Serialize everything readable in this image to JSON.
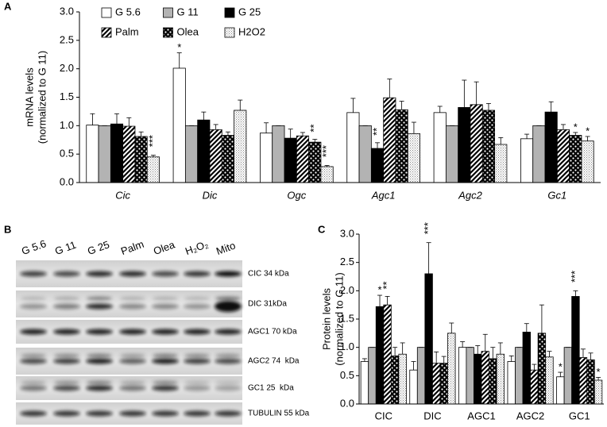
{
  "panel_labels": [
    "A",
    "B",
    "C"
  ],
  "chart_data": [
    {
      "type": "bar",
      "ylabel": [
        "mRNA levels",
        "(normalized to G 11)"
      ],
      "categories": [
        "Cic",
        "Dic",
        "Ogc",
        "Agc1",
        "Agc2",
        "Gc1"
      ],
      "ylim": [
        0,
        3.0
      ],
      "yticks": [
        {
          "value": 0,
          "label": "0.0"
        },
        0.5,
        {
          "value": 1,
          "label": "1.0"
        },
        1.5,
        {
          "value": 2,
          "label": "2.0"
        },
        2.5,
        {
          "value": 3,
          "label": "3.0"
        }
      ],
      "legend": "top-left",
      "series": [
        {
          "name": "G 5.6",
          "color": "#ffffff",
          "pattern": null,
          "values": [
            1.01,
            2.01,
            0.87,
            1.23,
            1.23,
            0.77
          ],
          "errors": [
            0.2,
            0.27,
            0.18,
            0.25,
            0.11,
            0.08
          ],
          "significance": [
            null,
            "*",
            null,
            null,
            null,
            null
          ]
        },
        {
          "name": "G 11",
          "color": "#b3b3b3",
          "pattern": null,
          "values": [
            1.0,
            1.0,
            1.0,
            1.0,
            1.0,
            1.0
          ],
          "errors": [
            0,
            0,
            0,
            0,
            0,
            0
          ],
          "significance": [
            null,
            null,
            null,
            null,
            null,
            null
          ]
        },
        {
          "name": "G 25",
          "color": "#000000",
          "pattern": null,
          "values": [
            1.03,
            1.1,
            0.78,
            0.6,
            1.32,
            1.24
          ],
          "errors": [
            0.18,
            0.14,
            0.16,
            0.1,
            0.48,
            0.18
          ],
          "significance": [
            null,
            null,
            null,
            "**",
            null,
            null
          ]
        },
        {
          "name": "Palm",
          "color": "#000000",
          "pattern": "diagonal",
          "values": [
            0.99,
            0.93,
            0.82,
            1.49,
            1.37,
            0.93
          ],
          "errors": [
            0.15,
            0.09,
            0.06,
            0.33,
            0.4,
            0.09
          ],
          "significance": [
            null,
            null,
            null,
            null,
            null,
            null
          ]
        },
        {
          "name": "Olea",
          "color": "#000000",
          "pattern": "dots",
          "values": [
            0.81,
            0.83,
            0.71,
            1.28,
            1.27,
            0.83
          ],
          "errors": [
            0.08,
            0.06,
            0.05,
            0.15,
            0.12,
            0.05
          ],
          "significance": [
            null,
            null,
            "**",
            null,
            null,
            "*"
          ]
        },
        {
          "name": "H2O2",
          "color": "#888888",
          "pattern": "fine-dots",
          "values": [
            0.45,
            1.27,
            0.28,
            0.86,
            0.67,
            0.73
          ],
          "errors": [
            0.03,
            0.18,
            0.02,
            0.2,
            0.12,
            0.08
          ],
          "significance": [
            "***",
            null,
            "***",
            null,
            null,
            "*"
          ]
        }
      ]
    },
    {
      "type": "bar",
      "ylabel": [
        "Protein levels",
        "(normalized to G 11)"
      ],
      "categories": [
        "CIC",
        "DIC",
        "AGC1",
        "AGC2",
        "GC1"
      ],
      "ylim": [
        0,
        3.0
      ],
      "yticks": [
        {
          "value": 0,
          "label": "0.0"
        },
        0.5,
        {
          "value": 1,
          "label": "1.0"
        },
        1.5,
        {
          "value": 2,
          "label": "2.0"
        },
        2.5,
        {
          "value": 3,
          "label": "3.0"
        }
      ],
      "series": [
        {
          "color": "#ffffff",
          "pattern": null,
          "values": [
            0.75,
            0.6,
            1.0,
            0.75,
            0.48
          ],
          "errors": [
            0.05,
            0.15,
            0.1,
            0.1,
            0.08
          ],
          "significance": [
            null,
            null,
            null,
            null,
            "*"
          ]
        },
        {
          "color": "#b3b3b3",
          "pattern": null,
          "values": [
            1.0,
            1.0,
            1.0,
            1.0,
            1.0
          ],
          "errors": [
            0,
            0,
            0,
            0,
            0
          ],
          "significance": [
            null,
            null,
            null,
            null,
            null
          ]
        },
        {
          "color": "#000000",
          "pattern": null,
          "values": [
            1.72,
            2.3,
            0.88,
            1.27,
            1.9
          ],
          "errors": [
            0.2,
            0.55,
            0.15,
            0.15,
            0.1
          ],
          "significance": [
            "*",
            "***",
            null,
            null,
            "***"
          ]
        },
        {
          "color": "#000000",
          "pattern": "diagonal",
          "values": [
            1.75,
            0.72,
            0.93,
            0.6,
            0.82
          ],
          "errors": [
            0.15,
            0.2,
            0.3,
            0.1,
            0.15
          ],
          "significance": [
            "**",
            null,
            null,
            null,
            null
          ]
        },
        {
          "color": "#000000",
          "pattern": "dots",
          "values": [
            0.85,
            0.72,
            0.8,
            1.25,
            0.78
          ],
          "errors": [
            0.15,
            0.12,
            0.2,
            0.5,
            0.12
          ],
          "significance": [
            null,
            null,
            null,
            null,
            null
          ]
        },
        {
          "color": "#888888",
          "pattern": "fine-dots",
          "values": [
            0.88,
            1.25,
            0.88,
            0.83,
            0.42
          ],
          "errors": [
            0.2,
            0.18,
            0.2,
            0.1,
            0.05
          ],
          "significance": [
            null,
            null,
            null,
            null,
            "*"
          ]
        }
      ]
    }
  ],
  "blot": {
    "lanes": [
      "G 5.6",
      "G 11",
      "G 25",
      "Palm",
      "Olea",
      "H₂O₂",
      "Mito"
    ],
    "bands": [
      "CIC 34 kDa",
      "DIC 31kDa",
      "AGC1 70 kDa",
      "AGC2 74  kDa",
      "GC1 25  kDa",
      "TUBULIN 55 kDa"
    ]
  }
}
